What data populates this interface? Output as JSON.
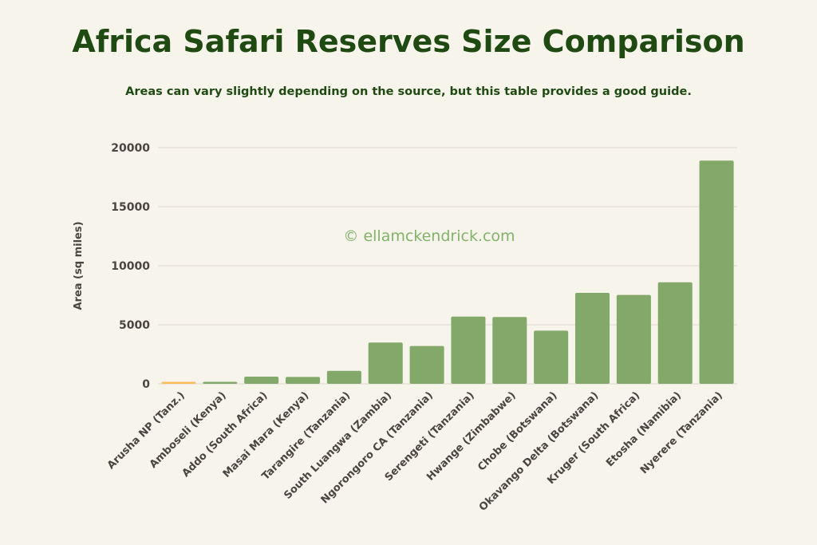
{
  "chart_data": {
    "type": "bar",
    "title": "Africa Safari Reserves Size Comparison",
    "subtitle": "Areas can vary slightly depending on the source, but this table provides a good guide.",
    "ylabel": "Area (sq miles)",
    "xlabel": "",
    "ylim": [
      0,
      20000
    ],
    "yticks": [
      0,
      5000,
      10000,
      15000,
      20000
    ],
    "grid": true,
    "watermark": "© ellamckendrick.com",
    "categories": [
      "Arusha NP (Tanz.)",
      "Amboseli (Kenya)",
      "Addo (South Africa)",
      "Masai Mara (Kenya)",
      "Tarangire (Tanzania)",
      "South Luangwa (Zambia)",
      "Ngorongoro CA (Tanzania)",
      "Serengeti (Tanzania)",
      "Hwange (Zimbabwe)",
      "Chobe (Botswana)",
      "Okavango Delta (Botswana)",
      "Kruger (South Africa)",
      "Etosha (Namibia)",
      "Nyerere (Tanzania)"
    ],
    "values": [
      53,
      150,
      610,
      580,
      1100,
      3494,
      3202,
      5695,
      5657,
      4500,
      7700,
      7523,
      8598,
      18900
    ],
    "colors": {
      "default": "#82a969",
      "highlight": "#fbbd5c",
      "highlight_index": 0,
      "text": "#1f4a12",
      "axis_text": "#4a4540",
      "grid": "#e6e1d8",
      "watermark": "#82b36a"
    }
  }
}
